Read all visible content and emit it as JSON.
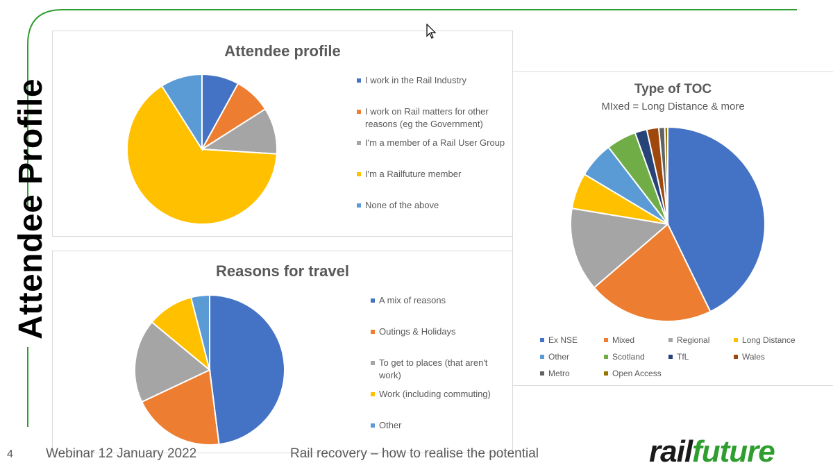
{
  "slide": {
    "title": "Attendee Profile",
    "page_number": "4",
    "footer_left": "Webinar 12 January 2022",
    "footer_center": "Rail recovery – how to realise the potential",
    "logo": {
      "part1": "rail",
      "part2": "future",
      "color1": "#1a1a1a",
      "color2": "#2e9e2e"
    },
    "accent_color": "#2e9e2e",
    "cursor_icon": "arrow-cursor-icon"
  },
  "chart_data": [
    {
      "type": "pie",
      "title": "Attendee profile",
      "categories": [
        "I work in the Rail Industry",
        "I work on Rail matters for other reasons (eg the Government)",
        "I'm a member of a Rail User Group",
        "I'm a Railfuture member",
        "None of the above"
      ],
      "values": [
        8,
        8,
        10,
        65,
        9
      ],
      "colors": [
        "#4472c4",
        "#ed7d31",
        "#a5a5a5",
        "#ffc000",
        "#5b9bd5"
      ],
      "legend_position": "right"
    },
    {
      "type": "pie",
      "title": "Reasons for travel",
      "categories": [
        "A mix of reasons",
        "Outings & Holidays",
        "To get to places (that aren't work)",
        "Work (including commuting)",
        "Other"
      ],
      "values": [
        48,
        20,
        18,
        10,
        4
      ],
      "colors": [
        "#4472c4",
        "#ed7d31",
        "#a5a5a5",
        "#ffc000",
        "#5b9bd5"
      ],
      "legend_position": "right"
    },
    {
      "type": "pie",
      "title": "Type of TOC",
      "subtitle": "MIxed = Long Distance & more",
      "categories": [
        "Ex NSE",
        "Mixed",
        "Regional",
        "Long Distance",
        "Other",
        "Scotland",
        "TfL",
        "Wales",
        "Metro",
        "Open Access"
      ],
      "values": [
        43,
        21,
        14,
        6,
        6,
        5,
        2,
        2,
        1,
        0.5
      ],
      "colors": [
        "#4472c4",
        "#ed7d31",
        "#a5a5a5",
        "#ffc000",
        "#5b9bd5",
        "#70ad47",
        "#264478",
        "#9e480e",
        "#636363",
        "#997300"
      ],
      "legend_position": "bottom"
    }
  ]
}
